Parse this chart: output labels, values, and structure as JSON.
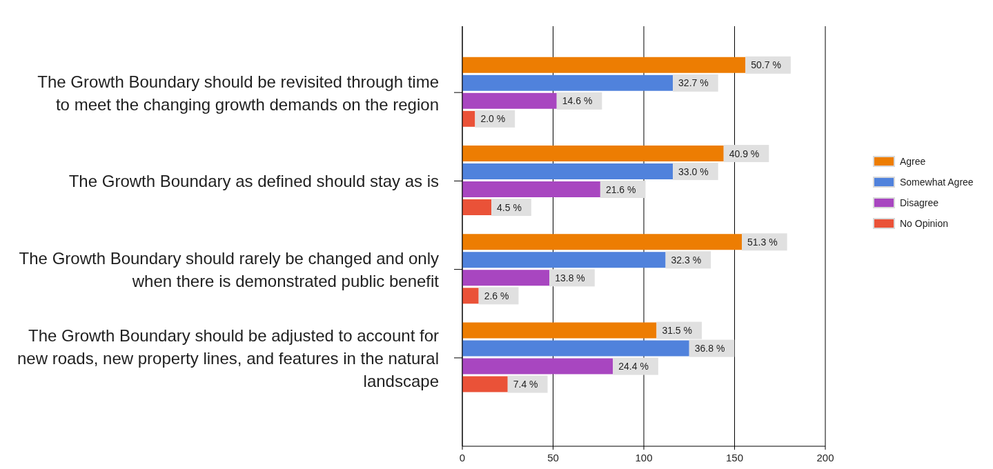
{
  "chart_data": {
    "type": "bar",
    "orientation": "horizontal",
    "categories": [
      "The Growth Boundary should be revisited through time\nto meet the changing growth demands on the region",
      "The Growth Boundary as defined should stay as is",
      "The Growth Boundary should rarely be changed and only\nwhen there is demonstrated public benefit",
      "The Growth Boundary should be adjusted to account for\nnew roads, new property lines, and features in the natural\nlandscape"
    ],
    "series": [
      {
        "name": "Agree",
        "color": "#ed7d02",
        "values": [
          156,
          144,
          154,
          107
        ]
      },
      {
        "name": "Somewhat Agree",
        "color": "#5082dc",
        "values": [
          116,
          116,
          112,
          125
        ]
      },
      {
        "name": "Disagree",
        "color": "#a846c0",
        "values": [
          52,
          76,
          48,
          83
        ]
      },
      {
        "name": "No Opinion",
        "color": "#ea5238",
        "values": [
          7,
          16,
          9,
          25
        ]
      }
    ],
    "annotations": [
      "50.7 %",
      "32.7 %",
      "14.6 %",
      "2.0 %",
      "40.9 %",
      "33.0 %",
      "21.6 %",
      "4.5 %",
      "51.3 %",
      "32.3 %",
      "13.8 %",
      "2.6 %",
      "31.5 %",
      "36.8 %",
      "24.4 %",
      "7.4 %"
    ],
    "xlim": [
      0,
      200
    ],
    "xticks": [
      0,
      50,
      100,
      150,
      200
    ],
    "grid": "x",
    "legend": "right"
  }
}
